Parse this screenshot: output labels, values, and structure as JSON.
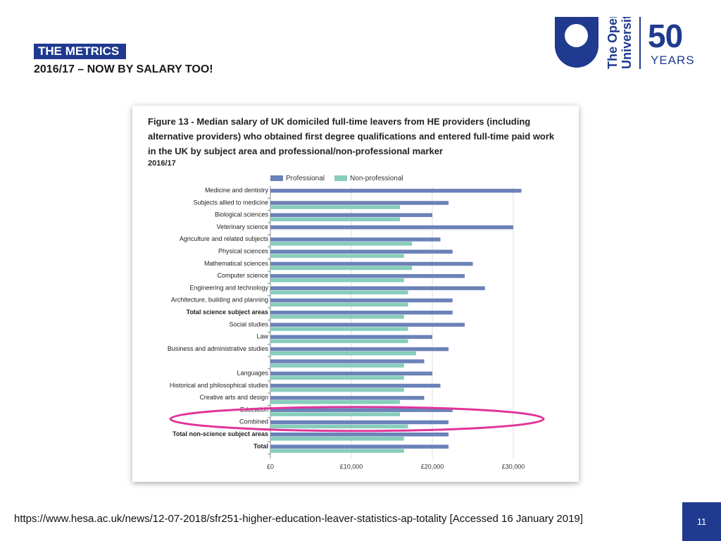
{
  "header": {
    "tag": "THE METRICS",
    "subtitle": "2016/17 – NOW BY SALARY TOO!"
  },
  "logo": {
    "university_line1": "The Open",
    "university_line2": "University",
    "anniversary_number": "50",
    "anniversary_word": "YEARS"
  },
  "figure": {
    "title": "Figure 13 - Median salary of UK domiciled full-time leavers from HE providers (including alternative providers) who obtained first degree qualifications and entered full-time paid work in the UK by subject area and professional/non-professional marker",
    "year": "2016/17"
  },
  "colors": {
    "professional": "#6b82b8",
    "non_professional": "#87cdbb",
    "highlight_ellipse": "#e0349a",
    "brand": "#1f3a8f"
  },
  "chart_data": {
    "type": "bar",
    "orientation": "horizontal",
    "categories": [
      "Medicine and dentistry",
      "Subjects allied to medicine",
      "Biological sciences",
      "Veterinary science",
      "Agriculture and related subjects",
      "Physical sciences",
      "Mathematical sciences",
      "Computer science",
      "Engineering and technology",
      "Architecture, building and planning",
      "Total science subject areas",
      "Social studies",
      "Law",
      "Business and administrative studies",
      "",
      "Languages",
      "Historical and philosophical studies",
      "Creative arts and design",
      "Education",
      "Combined",
      "Total non-science subject areas",
      "Total"
    ],
    "bold_categories": [
      "Total science subject areas",
      "Total non-science subject areas",
      "Total"
    ],
    "series": [
      {
        "name": "Professional",
        "values": [
          31000,
          22000,
          20000,
          30000,
          21000,
          22500,
          25000,
          24000,
          26500,
          22500,
          22500,
          24000,
          20000,
          22000,
          19000,
          20000,
          21000,
          19000,
          22500,
          22000,
          22000,
          22000
        ]
      },
      {
        "name": "Non-professional",
        "values": [
          null,
          16000,
          16000,
          null,
          17500,
          16500,
          17500,
          16500,
          17000,
          17000,
          16500,
          17000,
          17000,
          18000,
          16500,
          16500,
          16500,
          16000,
          16000,
          17000,
          16500,
          16500
        ]
      }
    ],
    "xlim": [
      0,
      30000
    ],
    "xticks": [
      0,
      10000,
      20000,
      30000
    ],
    "xtick_labels": [
      "£0",
      "£10,000",
      "£20,000",
      "£30,000"
    ],
    "grid": true,
    "legend_position": "top",
    "highlighted_categories": [
      "Education",
      "Combined"
    ]
  },
  "footer": {
    "source": "https://www.hesa.ac.uk/news/12-07-2018/sfr251-higher-education-leaver-statistics-ap-totality [Accessed 16 January 2019]",
    "page_number": "11"
  }
}
